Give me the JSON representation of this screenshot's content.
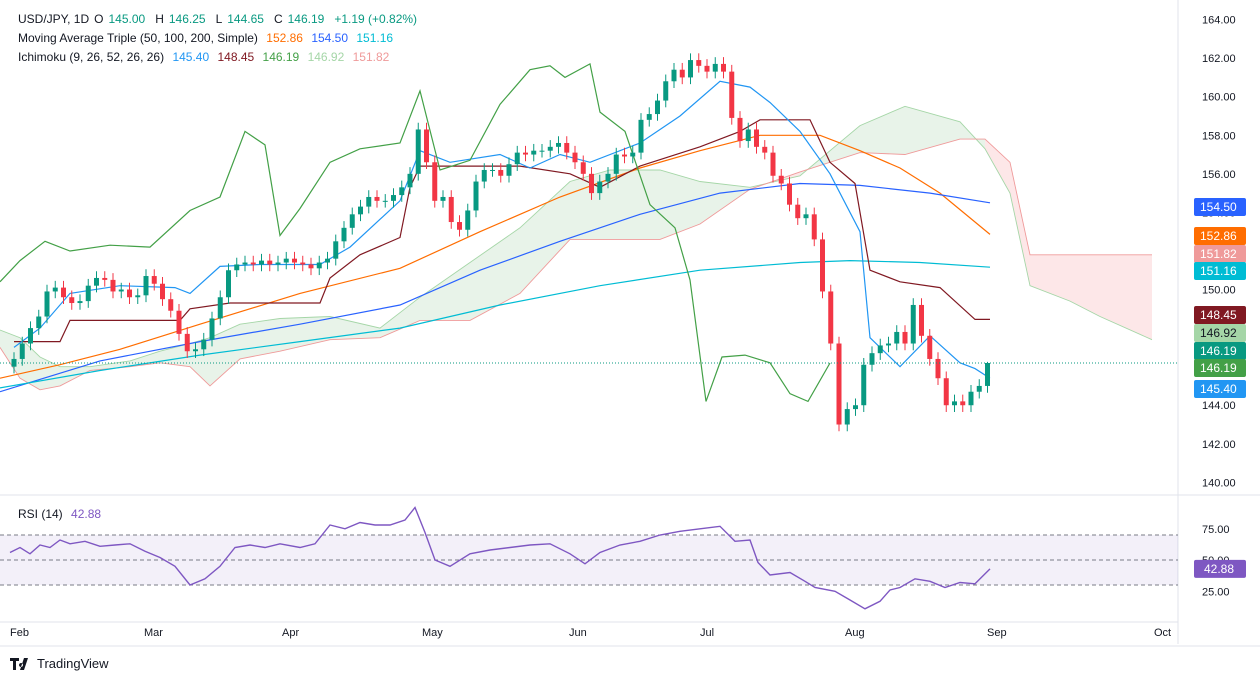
{
  "header": {
    "symbol": "USD/JPY, 1D",
    "o_label": "O",
    "o": "145.00",
    "h_label": "H",
    "h": "146.25",
    "l_label": "L",
    "l": "144.65",
    "c_label": "C",
    "c": "146.19",
    "change": "+1.19 (+0.82%)"
  },
  "ma_legend": {
    "label": "Moving Average Triple (50, 100, 200, Simple)",
    "v50": "152.86",
    "v100": "154.50",
    "v200": "151.16"
  },
  "ichimoku_legend": {
    "label": "Ichimoku (9, 26, 52, 26, 26)",
    "conv": "145.40",
    "base": "148.45",
    "lag": "146.19",
    "spanA": "146.92",
    "spanB": "151.82"
  },
  "rsi_legend": {
    "label": "RSI (14)",
    "value": "42.88"
  },
  "branding": "TradingView",
  "colors": {
    "up": "#089981",
    "down": "#f23645",
    "ma50": "#ff6d00",
    "ma100": "#2962ff",
    "ma200": "#00bcd4",
    "conv": "#2196f3",
    "base": "#801922",
    "lag": "#43a047",
    "spanA": "#a5d6a7",
    "spanB": "#ef9a9a",
    "rsi": "#7e57c2"
  },
  "chart_data": {
    "type": "candlestick",
    "price_axis": {
      "ticks": [
        "164.00",
        "162.00",
        "160.00",
        "158.00",
        "156.00",
        "154.00",
        "152.00",
        "150.00",
        "148.00",
        "146.00",
        "144.00",
        "142.00",
        "140.00"
      ],
      "ylim": [
        139.5,
        164.6
      ]
    },
    "time_axis": [
      "Feb",
      "Mar",
      "Apr",
      "May",
      "Jun",
      "Jul",
      "Aug",
      "Sep",
      "Oct"
    ],
    "price_labels": [
      {
        "text": "154.50",
        "value": 154.5,
        "color": "#2962ff"
      },
      {
        "text": "152.86",
        "value": 152.86,
        "color": "#ff6d00"
      },
      {
        "text": "151.82",
        "value": 151.82,
        "color": "#ef9a9a"
      },
      {
        "text": "151.16",
        "value": 151.16,
        "color": "#00bcd4"
      },
      {
        "text": "148.45",
        "value": 148.45,
        "color": "#801922"
      },
      {
        "text": "146.92",
        "value": 146.92,
        "color": "#a5d6a7"
      },
      {
        "text": "146.19",
        "value": 146.19,
        "color": "#089981"
      },
      {
        "text": "146.19",
        "value": 146.19,
        "color": "#43a047"
      },
      {
        "text": "145.40",
        "value": 145.4,
        "color": "#2196f3"
      }
    ],
    "close_series": [
      146.4,
      147.2,
      148.0,
      148.6,
      149.9,
      150.1,
      149.6,
      149.3,
      149.4,
      150.2,
      150.6,
      150.5,
      149.9,
      150.0,
      149.6,
      149.7,
      150.7,
      150.3,
      149.5,
      148.9,
      147.7,
      146.8,
      146.9,
      147.4,
      148.5,
      149.6,
      151.0,
      151.3,
      151.4,
      151.3,
      151.5,
      151.3,
      151.4,
      151.6,
      151.4,
      151.3,
      151.1,
      151.4,
      151.6,
      152.5,
      153.2,
      153.9,
      154.3,
      154.8,
      154.6,
      154.6,
      154.9,
      155.3,
      156.0,
      158.3,
      156.6,
      154.6,
      154.8,
      153.5,
      153.1,
      154.1,
      155.6,
      156.2,
      156.2,
      155.9,
      156.5,
      157.1,
      157.0,
      157.2,
      157.2,
      157.4,
      157.6,
      157.1,
      156.6,
      156.0,
      155.0,
      155.6,
      156.0,
      157.0,
      156.9,
      157.1,
      158.8,
      159.1,
      159.8,
      160.8,
      161.4,
      161.0,
      161.9,
      161.6,
      161.3,
      161.7,
      161.3,
      158.9,
      157.7,
      158.3,
      157.4,
      157.1,
      155.9,
      155.5,
      154.4,
      153.7,
      153.9,
      152.6,
      149.9,
      147.2,
      143.0,
      143.8,
      144.0,
      146.1,
      146.7,
      147.1,
      147.2,
      147.8,
      147.2,
      149.2,
      147.6,
      146.4,
      145.4,
      144.0,
      144.2,
      144.0,
      144.7,
      145.0,
      146.19
    ],
    "ma50_last": 152.86,
    "ma100_last": 154.5,
    "ma200_last": 151.16,
    "rsi": {
      "label": "RSI (14)",
      "last": 42.88,
      "ticks": [
        "75.00",
        "50.00",
        "25.00"
      ],
      "bands": [
        70,
        50,
        30
      ]
    }
  }
}
